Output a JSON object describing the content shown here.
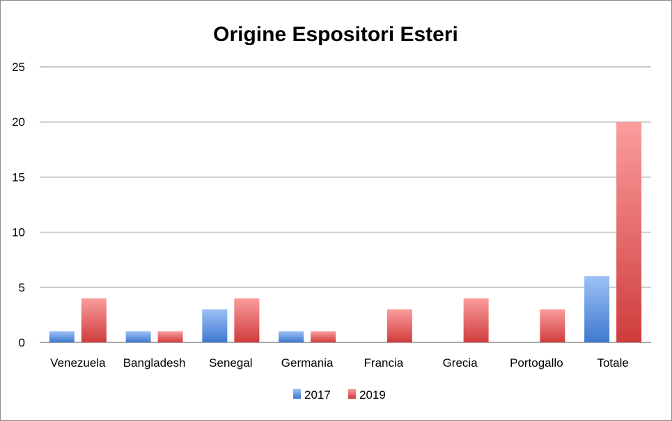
{
  "chart_data": {
    "type": "bar",
    "title": "Origine Espositori Esteri",
    "categories": [
      "Venezuela",
      "Bangladesh",
      "Senegal",
      "Germania",
      "Francia",
      "Grecia",
      "Portogallo",
      "Totale"
    ],
    "series": [
      {
        "name": "2017",
        "values": [
          1,
          1,
          3,
          1,
          0,
          0,
          0,
          6
        ],
        "color": "#4a86d8"
      },
      {
        "name": "2019",
        "values": [
          4,
          1,
          4,
          1,
          3,
          4,
          3,
          20
        ],
        "color": "#d94a4a"
      }
    ],
    "yticks": [
      "0",
      "5",
      "10",
      "15",
      "20",
      "25"
    ],
    "ylim": [
      0,
      25
    ],
    "grid": true,
    "legend": "bottom"
  }
}
